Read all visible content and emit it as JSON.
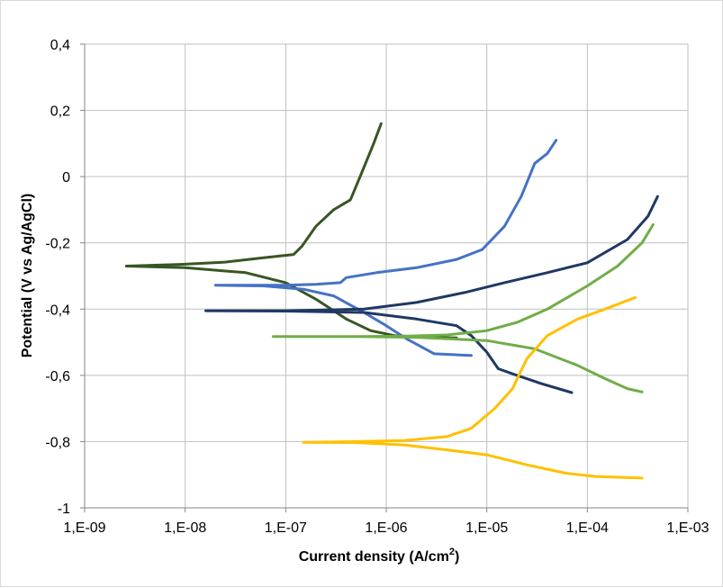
{
  "chart_data": {
    "type": "line",
    "title": "",
    "xlabel": "Current density (A/cm",
    "xlabel_superscript": "2",
    "xlabel_suffix": ")",
    "ylabel": "Potential (V vs Ag/AgCl)",
    "x_scale": "log",
    "xlim": [
      1e-09,
      0.001
    ],
    "ylim": [
      -1.0,
      0.4
    ],
    "x_tick_labels": [
      "1,E-09",
      "1,E-08",
      "1,E-07",
      "1,E-06",
      "1,E-05",
      "1,E-04",
      "1,E-03"
    ],
    "x_ticks": [
      1e-09,
      1e-08,
      1e-07,
      1e-06,
      1e-05,
      0.0001,
      0.001
    ],
    "y_tick_labels": [
      "0,4",
      "0,2",
      "0",
      "-0,2",
      "-0,4",
      "-0,6",
      "-0,8",
      "-1"
    ],
    "y_ticks": [
      0.4,
      0.2,
      0.0,
      -0.2,
      -0.4,
      -0.6,
      -0.8,
      -1.0
    ],
    "grid": true,
    "legend": "none",
    "series": [
      {
        "color": "#375623",
        "points": [
          [
            8.9e-07,
            0.16
          ],
          [
            7.5e-07,
            0.1
          ],
          [
            5.5e-07,
            0.0
          ],
          [
            4.4e-07,
            -0.07
          ],
          [
            3e-07,
            -0.1
          ],
          [
            2e-07,
            -0.15
          ],
          [
            1.45e-07,
            -0.21
          ],
          [
            1.2e-07,
            -0.235
          ],
          [
            6e-08,
            -0.245
          ],
          [
            2.5e-08,
            -0.258
          ],
          [
            9e-09,
            -0.265
          ],
          [
            2.6e-09,
            -0.27
          ],
          [
            1e-08,
            -0.275
          ],
          [
            4e-08,
            -0.29
          ],
          [
            1e-07,
            -0.32
          ],
          [
            2e-07,
            -0.37
          ],
          [
            4e-07,
            -0.43
          ],
          [
            7e-07,
            -0.465
          ],
          [
            1.2e-06,
            -0.48
          ],
          [
            2.5e-06,
            -0.485
          ],
          [
            5e-06,
            -0.487
          ]
        ]
      },
      {
        "color": "#4472C4",
        "points": [
          [
            4.9e-05,
            0.11
          ],
          [
            4e-05,
            0.07
          ],
          [
            3e-05,
            0.04
          ],
          [
            2.2e-05,
            -0.06
          ],
          [
            1.5e-05,
            -0.15
          ],
          [
            9e-06,
            -0.22
          ],
          [
            5e-06,
            -0.25
          ],
          [
            2e-06,
            -0.275
          ],
          [
            8e-07,
            -0.29
          ],
          [
            4e-07,
            -0.305
          ],
          [
            3.5e-07,
            -0.32
          ],
          [
            2e-07,
            -0.325
          ],
          [
            1e-07,
            -0.328
          ],
          [
            5e-08,
            -0.328
          ],
          [
            2e-08,
            -0.328
          ],
          [
            6e-08,
            -0.33
          ],
          [
            1.5e-07,
            -0.34
          ],
          [
            3e-07,
            -0.36
          ],
          [
            6e-07,
            -0.41
          ],
          [
            1e-06,
            -0.45
          ],
          [
            1.6e-06,
            -0.49
          ],
          [
            3e-06,
            -0.535
          ],
          [
            7e-06,
            -0.54
          ]
        ]
      },
      {
        "color": "#203864",
        "points": [
          [
            0.0005,
            -0.06
          ],
          [
            0.0004,
            -0.12
          ],
          [
            0.00025,
            -0.19
          ],
          [
            0.0001,
            -0.26
          ],
          [
            4e-05,
            -0.29
          ],
          [
            1.5e-05,
            -0.32
          ],
          [
            6e-06,
            -0.35
          ],
          [
            2e-06,
            -0.38
          ],
          [
            6e-07,
            -0.4
          ],
          [
            1e-07,
            -0.405
          ],
          [
            1.6e-08,
            -0.405
          ],
          [
            1e-07,
            -0.406
          ],
          [
            6e-07,
            -0.41
          ],
          [
            2e-06,
            -0.43
          ],
          [
            5e-06,
            -0.45
          ],
          [
            7e-06,
            -0.48
          ],
          [
            1e-05,
            -0.53
          ],
          [
            1.3e-05,
            -0.58
          ],
          [
            2e-05,
            -0.6
          ],
          [
            3.5e-05,
            -0.625
          ],
          [
            7e-05,
            -0.652
          ]
        ]
      },
      {
        "color": "#70AD47",
        "points": [
          [
            0.00045,
            -0.145
          ],
          [
            0.00035,
            -0.2
          ],
          [
            0.0002,
            -0.27
          ],
          [
            0.0001,
            -0.33
          ],
          [
            4e-05,
            -0.4
          ],
          [
            2e-05,
            -0.44
          ],
          [
            1e-05,
            -0.465
          ],
          [
            4e-06,
            -0.478
          ],
          [
            1.5e-06,
            -0.482
          ],
          [
            5e-07,
            -0.483
          ],
          [
            7.5e-08,
            -0.483
          ],
          [
            5e-07,
            -0.483
          ],
          [
            2e-06,
            -0.485
          ],
          [
            1e-05,
            -0.495
          ],
          [
            3e-05,
            -0.52
          ],
          [
            8e-05,
            -0.57
          ],
          [
            0.00015,
            -0.61
          ],
          [
            0.00025,
            -0.64
          ],
          [
            0.00035,
            -0.65
          ]
        ]
      },
      {
        "color": "#FFC000",
        "points": [
          [
            0.0003,
            -0.365
          ],
          [
            0.00015,
            -0.4
          ],
          [
            8e-05,
            -0.43
          ],
          [
            4e-05,
            -0.48
          ],
          [
            2.5e-05,
            -0.55
          ],
          [
            1.8e-05,
            -0.64
          ],
          [
            1.2e-05,
            -0.7
          ],
          [
            7e-06,
            -0.76
          ],
          [
            4e-06,
            -0.785
          ],
          [
            1.5e-06,
            -0.797
          ],
          [
            5e-07,
            -0.8
          ],
          [
            1.5e-07,
            -0.802
          ],
          [
            5e-07,
            -0.803
          ],
          [
            1.5e-06,
            -0.81
          ],
          [
            4e-06,
            -0.825
          ],
          [
            1e-05,
            -0.84
          ],
          [
            2.5e-05,
            -0.87
          ],
          [
            6e-05,
            -0.895
          ],
          [
            0.00012,
            -0.905
          ],
          [
            0.00035,
            -0.91
          ]
        ]
      }
    ]
  }
}
